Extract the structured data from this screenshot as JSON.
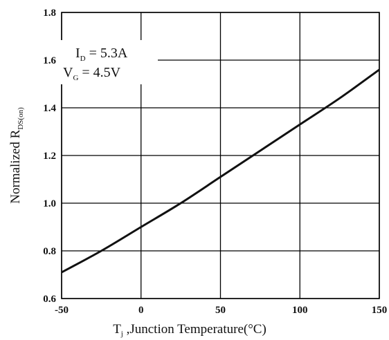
{
  "chart_data": {
    "type": "line",
    "title": "",
    "xlabel_main": "T",
    "xlabel_sub": "j",
    "xlabel_rest": " ,Junction Temperature(°C)",
    "ylabel_main": "Normalized R",
    "ylabel_sub": "DS(on)",
    "xlim": [
      -50,
      150
    ],
    "ylim": [
      0.6,
      1.8
    ],
    "x_ticks": [
      "-50",
      "0",
      "50",
      "100",
      "150"
    ],
    "y_ticks": [
      "0.6",
      "0.8",
      "1.0",
      "1.2",
      "1.4",
      "1.6",
      "1.8"
    ],
    "grid": true,
    "annotation": {
      "line1_main": "I",
      "line1_sub": "D",
      "line1_rest": " = 5.3A",
      "line2_main": "V",
      "line2_sub": "G",
      "line2_rest": " = 4.5V"
    },
    "series": [
      {
        "x": [
          -50,
          -25,
          0,
          25,
          50,
          75,
          100,
          125,
          150
        ],
        "y": [
          0.71,
          0.8,
          0.9,
          1.0,
          1.11,
          1.22,
          1.33,
          1.44,
          1.56
        ]
      }
    ]
  }
}
